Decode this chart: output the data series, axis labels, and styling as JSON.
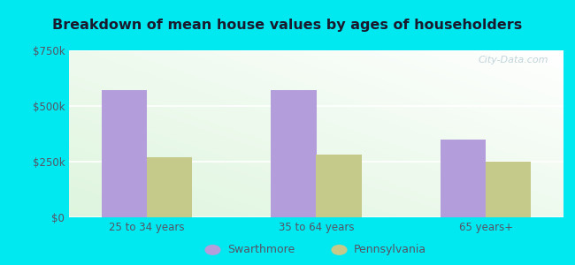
{
  "title": "Breakdown of mean house values by ages of householders",
  "categories": [
    "25 to 34 years",
    "35 to 64 years",
    "65 years+"
  ],
  "swarthmore": [
    570000,
    570000,
    350000
  ],
  "pennsylvania": [
    270000,
    280000,
    250000
  ],
  "swarthmore_color": "#b39ddb",
  "pennsylvania_color": "#c5c98a",
  "ylim": [
    0,
    750000
  ],
  "yticks": [
    0,
    250000,
    500000,
    750000
  ],
  "ytick_labels": [
    "$0",
    "$250k",
    "$500k",
    "$750k"
  ],
  "background_outer": "#00e8f0",
  "legend_swarthmore": "Swarthmore",
  "legend_pennsylvania": "Pennsylvania",
  "watermark": "City-Data.com",
  "title_color": "#1a1a2e",
  "tick_color": "#555566"
}
